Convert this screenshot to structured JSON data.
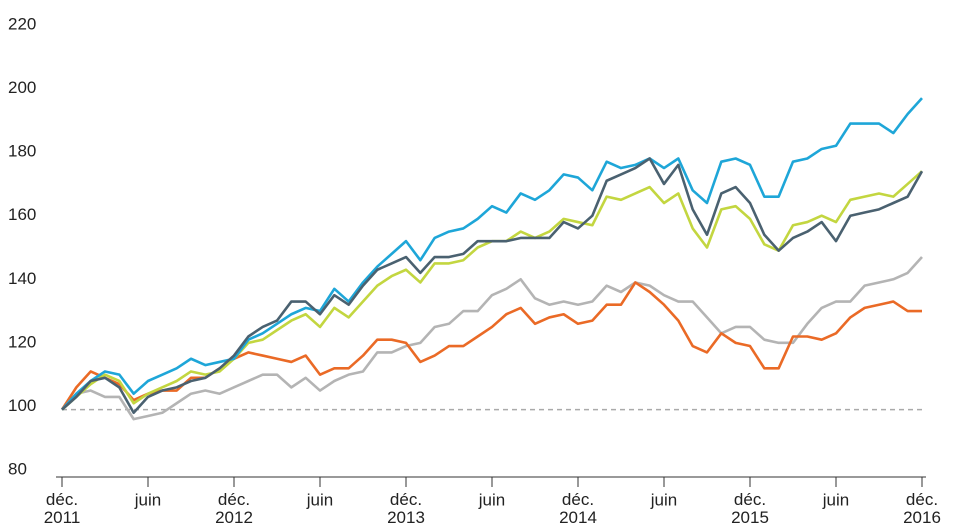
{
  "chart_data": {
    "type": "line",
    "x": [
      "2011-12",
      "2012-01",
      "2012-02",
      "2012-03",
      "2012-04",
      "2012-05",
      "2012-06",
      "2012-07",
      "2012-08",
      "2012-09",
      "2012-10",
      "2012-11",
      "2012-12",
      "2013-01",
      "2013-02",
      "2013-03",
      "2013-04",
      "2013-05",
      "2013-06",
      "2013-07",
      "2013-08",
      "2013-09",
      "2013-10",
      "2013-11",
      "2013-12",
      "2014-01",
      "2014-02",
      "2014-03",
      "2014-04",
      "2014-05",
      "2014-06",
      "2014-07",
      "2014-08",
      "2014-09",
      "2014-10",
      "2014-11",
      "2014-12",
      "2015-01",
      "2015-02",
      "2015-03",
      "2015-04",
      "2015-05",
      "2015-06",
      "2015-07",
      "2015-08",
      "2015-09",
      "2015-10",
      "2015-11",
      "2015-12",
      "2016-01",
      "2016-02",
      "2016-03",
      "2016-04",
      "2016-05",
      "2016-06",
      "2016-07",
      "2016-08",
      "2016-09",
      "2016-10",
      "2016-11",
      "2016-12"
    ],
    "xlim": [
      "2011-12",
      "2016-12"
    ],
    "xticks": [
      {
        "value": "2011-12",
        "label": "déc.\n2011"
      },
      {
        "value": "2012-06",
        "label": "juin"
      },
      {
        "value": "2012-12",
        "label": "déc.\n2012"
      },
      {
        "value": "2013-06",
        "label": "juin"
      },
      {
        "value": "2013-12",
        "label": "déc.\n2013"
      },
      {
        "value": "2014-06",
        "label": "juin"
      },
      {
        "value": "2014-12",
        "label": "déc.\n2014"
      },
      {
        "value": "2015-06",
        "label": "juin"
      },
      {
        "value": "2015-12",
        "label": "déc.\n2015"
      },
      {
        "value": "2016-06",
        "label": "juin"
      },
      {
        "value": "2016-12",
        "label": "déc.\n2016"
      }
    ],
    "ylim": [
      80,
      220
    ],
    "yticks": [
      80,
      100,
      120,
      140,
      160,
      180,
      200,
      220
    ],
    "grid": false,
    "reference_line": 99,
    "series": [
      {
        "color": "#b4b4b4",
        "values": [
          99,
          104,
          105,
          103,
          103,
          96,
          97,
          98,
          101,
          104,
          105,
          104,
          106,
          108,
          110,
          110,
          106,
          109,
          105,
          108,
          110,
          111,
          117,
          117,
          119,
          120,
          125,
          126,
          130,
          130,
          135,
          137,
          140,
          134,
          132,
          133,
          132,
          133,
          138,
          136,
          139,
          138,
          135,
          133,
          133,
          128,
          123,
          125,
          125,
          121,
          120,
          120,
          126,
          131,
          133,
          133,
          138,
          139,
          140,
          142,
          147
        ]
      },
      {
        "color": "#ea6a26",
        "values": [
          99,
          106,
          111,
          109,
          107,
          102,
          104,
          105,
          105,
          109,
          109,
          112,
          115,
          117,
          116,
          115,
          114,
          116,
          110,
          112,
          112,
          116,
          121,
          121,
          120,
          114,
          116,
          119,
          119,
          122,
          125,
          129,
          131,
          126,
          128,
          129,
          126,
          127,
          132,
          132,
          139,
          136,
          132,
          127,
          119,
          117,
          123,
          120,
          119,
          112,
          112,
          122,
          122,
          121,
          123,
          128,
          131,
          132,
          133,
          130,
          130
        ]
      },
      {
        "color": "#c3d640",
        "values": [
          99,
          103,
          107,
          110,
          108,
          101,
          104,
          106,
          108,
          111,
          110,
          111,
          115,
          120,
          121,
          124,
          127,
          129,
          125,
          131,
          128,
          133,
          138,
          141,
          143,
          139,
          145,
          145,
          146,
          150,
          152,
          152,
          155,
          153,
          155,
          159,
          158,
          157,
          166,
          165,
          167,
          169,
          164,
          167,
          156,
          150,
          162,
          163,
          159,
          151,
          149,
          157,
          158,
          160,
          158,
          165,
          166,
          167,
          166,
          170,
          174
        ]
      },
      {
        "color": "#1ea6d8",
        "values": [
          99,
          104,
          108,
          111,
          110,
          104,
          108,
          110,
          112,
          115,
          113,
          114,
          115,
          121,
          123,
          126,
          129,
          131,
          130,
          137,
          133,
          139,
          144,
          148,
          152,
          146,
          153,
          155,
          156,
          159,
          163,
          161,
          167,
          165,
          168,
          173,
          172,
          168,
          177,
          175,
          176,
          178,
          175,
          178,
          168,
          164,
          177,
          178,
          176,
          166,
          166,
          177,
          178,
          181,
          182,
          189,
          189,
          189,
          186,
          192,
          197
        ]
      },
      {
        "color": "#4a6170",
        "values": [
          99,
          103,
          108,
          109,
          106,
          98,
          103,
          105,
          106,
          108,
          109,
          112,
          116,
          122,
          125,
          127,
          133,
          133,
          129,
          135,
          132,
          138,
          143,
          145,
          147,
          142,
          147,
          147,
          148,
          152,
          152,
          152,
          153,
          153,
          153,
          158,
          156,
          160,
          171,
          173,
          175,
          178,
          170,
          176,
          162,
          154,
          167,
          169,
          164,
          154,
          149,
          153,
          155,
          158,
          152,
          160,
          161,
          162,
          164,
          166,
          174
        ]
      }
    ]
  }
}
